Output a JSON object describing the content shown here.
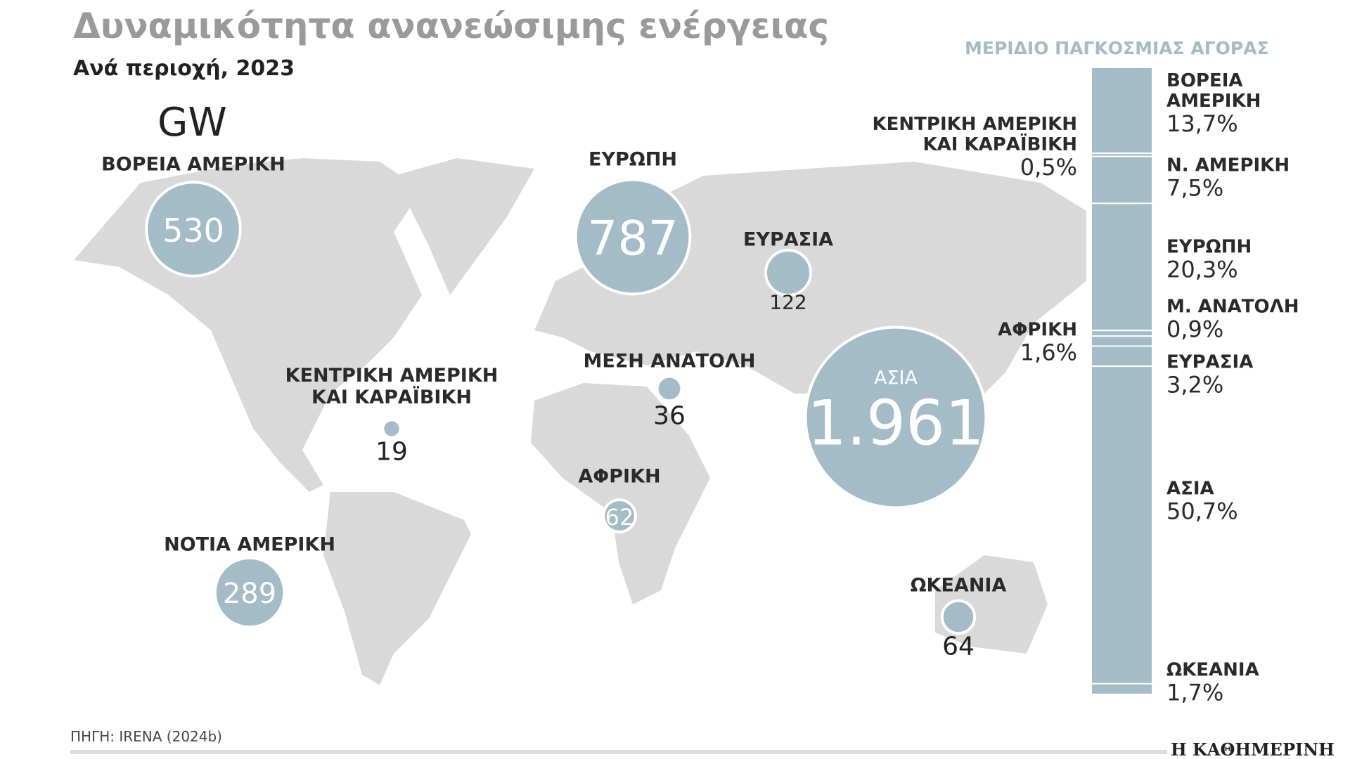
{
  "title": "Δυναμικότητα ανανεώσιμης ενέργειας",
  "subtitle": "Ανά περιοχή, 2023",
  "source": "ΠΗΓΗ: IRENA (2024b)",
  "publisher": "Η ΚΑΘΗΜΕΡΙΝΗ",
  "chart_data": [
    {
      "type": "bubble",
      "unit": "GW",
      "categories": [
        "ΒΟΡΕΙΑ ΑΜΕΡΙΚΗ",
        "ΕΥΡΩΠΗ",
        "ΕΥΡΑΣΙΑ",
        "ΑΣΙΑ",
        "ΚΕΝΤΡΙΚΗ ΑΜΕΡΙΚΗ ΚΑΙ ΚΑΡΑΪΒΙΚΗ",
        "ΜΕΣΗ ΑΝΑΤΟΛΗ",
        "ΑΦΡΙΚΗ",
        "ΝΟΤΙΑ ΑΜΕΡΙΚΗ",
        "ΩΚΕΑΝΙΑ"
      ],
      "values": [
        530,
        787,
        122,
        1961,
        19,
        36,
        62,
        289,
        64
      ],
      "value_labels": [
        "530",
        "787",
        "122",
        "1.961",
        "19",
        "36",
        "62",
        "289",
        "64"
      ],
      "color": "#a3bcc8"
    },
    {
      "type": "stacked_bar",
      "title": "ΜΕΡΙΔΙΟ ΠΑΓΚΟΣΜΙΑΣ ΑΓΟΡΑΣ",
      "categories": [
        "ΒΟΡΕΙΑ ΑΜΕΡΙΚΗ",
        "ΚΕΝΤΡΙΚΗ ΑΜΕΡΙΚΗ ΚΑΙ ΚΑΡΑΪΒΙΚΗ",
        "Ν. ΑΜΕΡΙΚΗ",
        "ΕΥΡΩΠΗ",
        "Μ. ΑΝΑΤΟΛΗ",
        "ΑΦΡΙΚΗ",
        "ΕΥΡΑΣΙΑ",
        "ΑΣΙΑ",
        "ΩΚΕΑΝΙΑ"
      ],
      "values": [
        13.7,
        0.5,
        7.5,
        20.3,
        0.9,
        1.6,
        3.2,
        50.7,
        1.7
      ],
      "value_labels": [
        "13,7%",
        "0,5%",
        "7,5%",
        "20,3%",
        "0,9%",
        "1,6%",
        "3,2%",
        "50,7%",
        "1,7%"
      ],
      "color": "#a3bcc8"
    }
  ]
}
